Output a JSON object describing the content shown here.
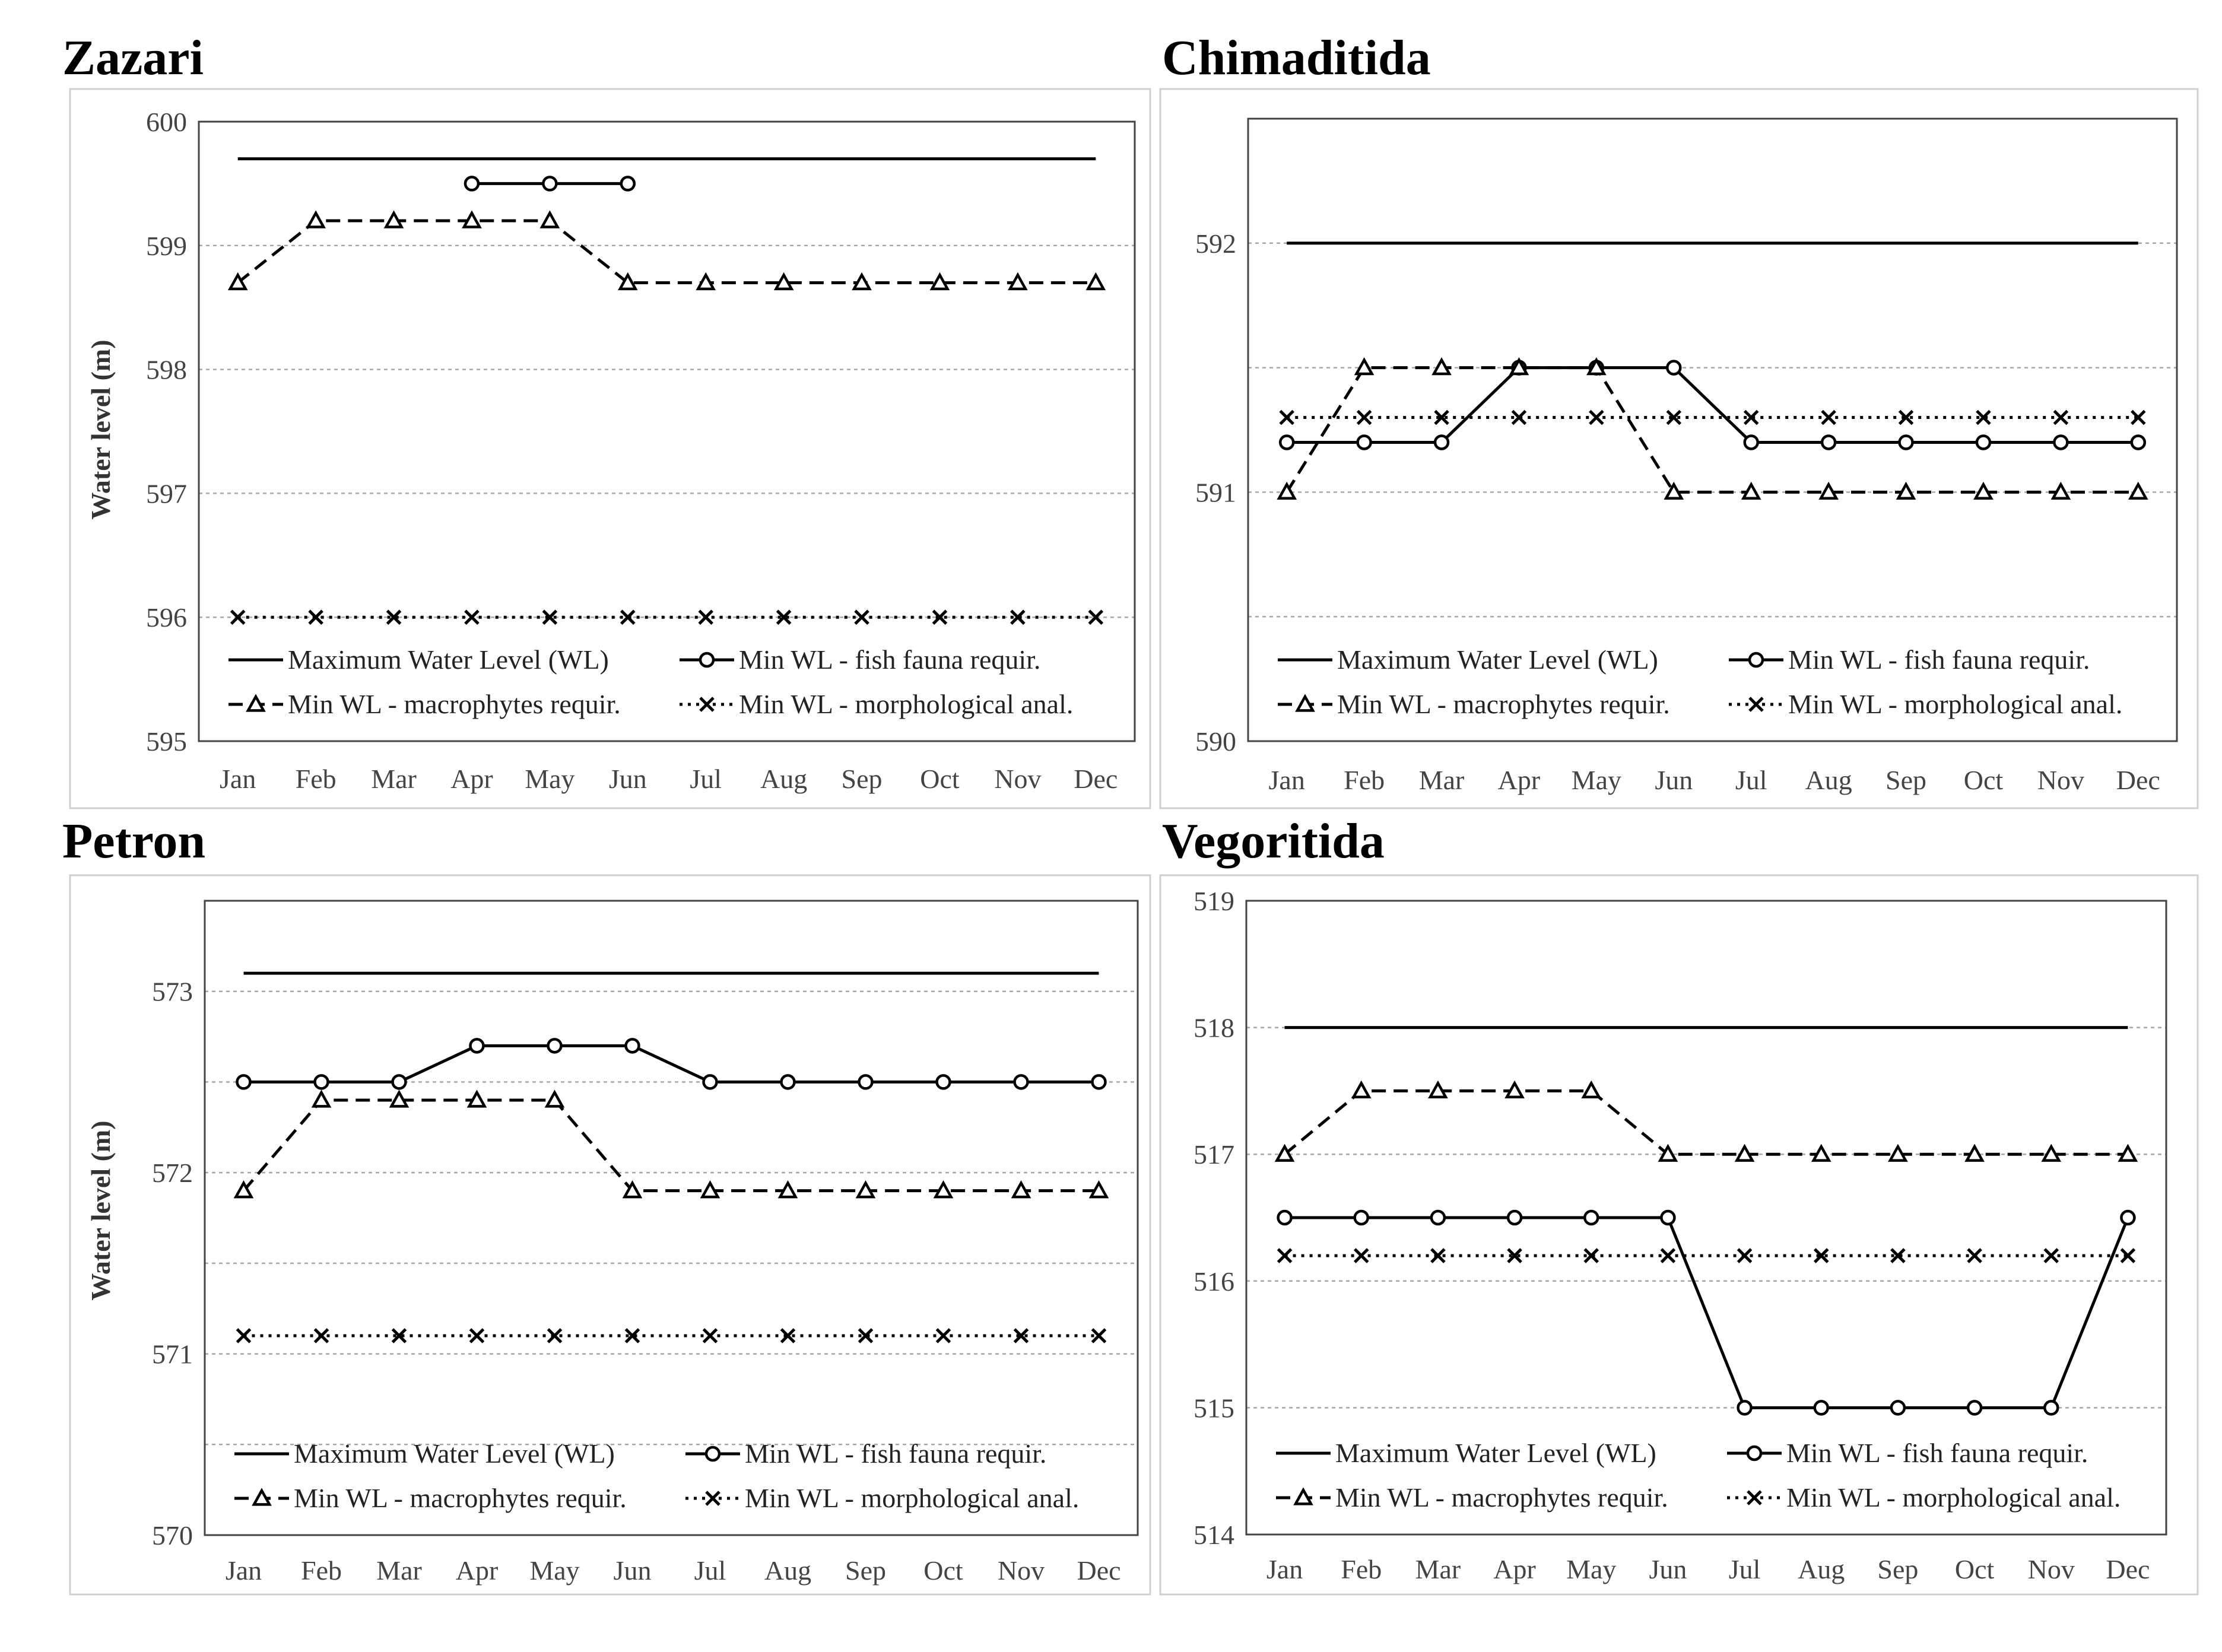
{
  "chart_data": [
    {
      "type": "line",
      "title": "Zazari",
      "ylabel": "Water level (m)",
      "ylim": [
        595,
        600
      ],
      "yticks": [
        595,
        596,
        597,
        598,
        599,
        600
      ],
      "gridlines": [
        596,
        597,
        598,
        599
      ],
      "categories": [
        "Jan",
        "Feb",
        "Mar",
        "Apr",
        "May",
        "Jun",
        "Jul",
        "Aug",
        "Sep",
        "Oct",
        "Nov",
        "Dec"
      ],
      "series": [
        {
          "name": "Maximum Water Level (WL)",
          "values": [
            599.7,
            599.7,
            599.7,
            599.7,
            599.7,
            599.7,
            599.7,
            599.7,
            599.7,
            599.7,
            599.7,
            599.7
          ]
        },
        {
          "name": "Min WL - fish fauna requir.",
          "values": [
            null,
            null,
            null,
            599.5,
            599.5,
            599.5,
            null,
            null,
            null,
            null,
            null,
            null
          ]
        },
        {
          "name": "Min WL - macrophytes requir.",
          "values": [
            598.7,
            599.2,
            599.2,
            599.2,
            599.2,
            598.7,
            598.7,
            598.7,
            598.7,
            598.7,
            598.7,
            598.7
          ]
        },
        {
          "name": "Min WL - morphological anal.",
          "values": [
            596,
            596,
            596,
            596,
            596,
            596,
            596,
            596,
            596,
            596,
            596,
            596
          ]
        }
      ]
    },
    {
      "type": "line",
      "title": "Chimaditida",
      "ylabel": "",
      "ylim": [
        590,
        592.5
      ],
      "yticks": [
        590,
        591,
        592
      ],
      "gridlines": [
        590.5,
        591,
        591.5,
        592
      ],
      "categories": [
        "Jan",
        "Feb",
        "Mar",
        "Apr",
        "May",
        "Jun",
        "Jul",
        "Aug",
        "Sep",
        "Oct",
        "Nov",
        "Dec"
      ],
      "series": [
        {
          "name": "Maximum Water Level (WL)",
          "values": [
            592,
            592,
            592,
            592,
            592,
            592,
            592,
            592,
            592,
            592,
            592,
            592
          ]
        },
        {
          "name": "Min WL - fish fauna requir.",
          "values": [
            591.2,
            591.2,
            591.2,
            591.5,
            591.5,
            591.5,
            591.2,
            591.2,
            591.2,
            591.2,
            591.2,
            591.2
          ]
        },
        {
          "name": "Min WL - macrophytes requir.",
          "values": [
            591,
            591.5,
            591.5,
            591.5,
            591.5,
            591,
            591,
            591,
            591,
            591,
            591,
            591
          ]
        },
        {
          "name": "Min WL - morphological anal.",
          "values": [
            591.3,
            591.3,
            591.3,
            591.3,
            591.3,
            591.3,
            591.3,
            591.3,
            591.3,
            591.3,
            591.3,
            591.3
          ]
        }
      ]
    },
    {
      "type": "line",
      "title": "Petron",
      "ylabel": "Water level (m)",
      "ylim": [
        570,
        573.5
      ],
      "yticks": [
        570,
        571,
        572,
        573
      ],
      "gridlines": [
        570.5,
        571,
        571.5,
        572,
        572.5,
        573
      ],
      "categories": [
        "Jan",
        "Feb",
        "Mar",
        "Apr",
        "May",
        "Jun",
        "Jul",
        "Aug",
        "Sep",
        "Oct",
        "Nov",
        "Dec"
      ],
      "series": [
        {
          "name": "Maximum Water Level (WL)",
          "values": [
            573.1,
            573.1,
            573.1,
            573.1,
            573.1,
            573.1,
            573.1,
            573.1,
            573.1,
            573.1,
            573.1,
            573.1
          ]
        },
        {
          "name": "Min WL - fish fauna requir.",
          "values": [
            572.5,
            572.5,
            572.5,
            572.7,
            572.7,
            572.7,
            572.5,
            572.5,
            572.5,
            572.5,
            572.5,
            572.5
          ]
        },
        {
          "name": "Min WL - macrophytes requir.",
          "values": [
            571.9,
            572.4,
            572.4,
            572.4,
            572.4,
            571.9,
            571.9,
            571.9,
            571.9,
            571.9,
            571.9,
            571.9
          ]
        },
        {
          "name": "Min WL - morphological anal.",
          "values": [
            571.1,
            571.1,
            571.1,
            571.1,
            571.1,
            571.1,
            571.1,
            571.1,
            571.1,
            571.1,
            571.1,
            571.1
          ]
        }
      ]
    },
    {
      "type": "line",
      "title": "Vegoritida",
      "ylabel": "",
      "ylim": [
        514,
        519
      ],
      "yticks": [
        514,
        515,
        516,
        517,
        518,
        519
      ],
      "gridlines": [
        515,
        516,
        517,
        518
      ],
      "categories": [
        "Jan",
        "Feb",
        "Mar",
        "Apr",
        "May",
        "Jun",
        "Jul",
        "Aug",
        "Sep",
        "Oct",
        "Nov",
        "Dec"
      ],
      "series": [
        {
          "name": "Maximum Water Level (WL)",
          "values": [
            518,
            518,
            518,
            518,
            518,
            518,
            518,
            518,
            518,
            518,
            518,
            518
          ]
        },
        {
          "name": "Min WL - fish fauna requir.",
          "values": [
            516.5,
            516.5,
            516.5,
            516.5,
            516.5,
            516.5,
            515,
            515,
            515,
            515,
            515,
            516.5
          ]
        },
        {
          "name": "Min WL - macrophytes requir.",
          "values": [
            517,
            517.5,
            517.5,
            517.5,
            517.5,
            517,
            517,
            517,
            517,
            517,
            517,
            517
          ]
        },
        {
          "name": "Min WL - morphological anal.",
          "values": [
            516.2,
            516.2,
            516.2,
            516.2,
            516.2,
            516.2,
            516.2,
            516.2,
            516.2,
            516.2,
            516.2,
            516.2
          ]
        }
      ]
    }
  ]
}
